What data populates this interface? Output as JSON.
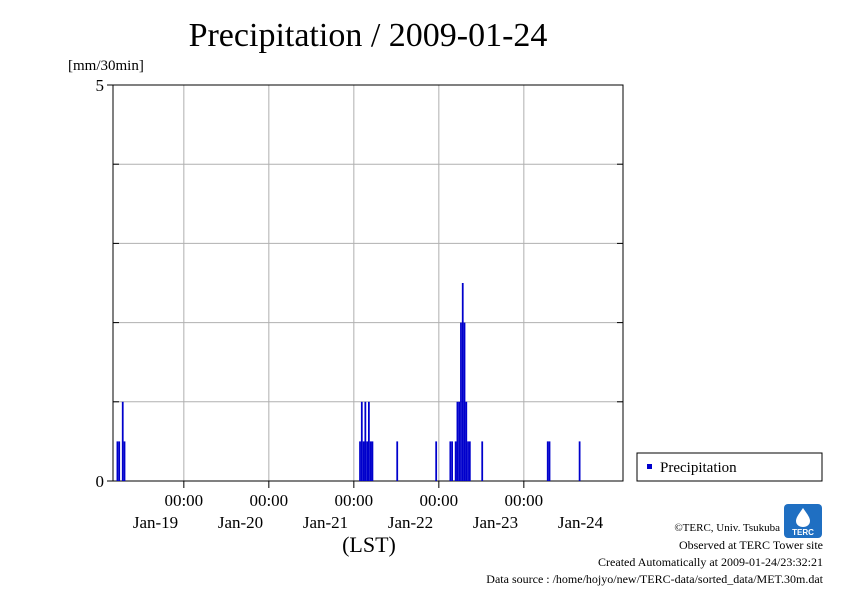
{
  "chart_data": {
    "type": "bar",
    "title": "Precipitation / 2009-01-24",
    "ylabel": "[mm/30min]",
    "xlabel": "(LST)",
    "ylim": [
      0,
      5
    ],
    "y_ticks": [
      {
        "v": 0,
        "label": "0"
      },
      {
        "v": 5,
        "label": "5"
      }
    ],
    "y_grid": [
      1,
      2,
      3,
      4
    ],
    "xlim": [
      0,
      144
    ],
    "x_ticks_time": [
      {
        "h": 20,
        "label": "00:00"
      },
      {
        "h": 44,
        "label": "00:00"
      },
      {
        "h": 68,
        "label": "00:00"
      },
      {
        "h": 92,
        "label": "00:00"
      },
      {
        "h": 116,
        "label": "00:00"
      }
    ],
    "x_ticks_date": [
      {
        "h": 12,
        "label": "Jan-19"
      },
      {
        "h": 36,
        "label": "Jan-20"
      },
      {
        "h": 60,
        "label": "Jan-21"
      },
      {
        "h": 84,
        "label": "Jan-22"
      },
      {
        "h": 108,
        "label": "Jan-23"
      },
      {
        "h": 132,
        "label": "Jan-24"
      }
    ],
    "grid": true,
    "legend_position": "right",
    "series": [
      {
        "name": "Precipitation",
        "color": "#0000cc",
        "bar_width_h": 0.5,
        "points": [
          {
            "x": 1.0,
            "y": 0.5
          },
          {
            "x": 1.5,
            "y": 0.5
          },
          {
            "x": 2.5,
            "y": 1.0
          },
          {
            "x": 3.0,
            "y": 0.5
          },
          {
            "x": 69.5,
            "y": 0.5
          },
          {
            "x": 70.0,
            "y": 1.0
          },
          {
            "x": 70.5,
            "y": 0.5
          },
          {
            "x": 71.0,
            "y": 1.0
          },
          {
            "x": 71.5,
            "y": 0.5
          },
          {
            "x": 72.0,
            "y": 1.0
          },
          {
            "x": 72.5,
            "y": 0.5
          },
          {
            "x": 73.0,
            "y": 0.5
          },
          {
            "x": 80.0,
            "y": 0.5
          },
          {
            "x": 91.0,
            "y": 0.5
          },
          {
            "x": 95.0,
            "y": 0.5
          },
          {
            "x": 95.5,
            "y": 0.5
          },
          {
            "x": 96.5,
            "y": 0.5
          },
          {
            "x": 97.0,
            "y": 1.0
          },
          {
            "x": 97.5,
            "y": 1.0
          },
          {
            "x": 98.0,
            "y": 2.0
          },
          {
            "x": 98.5,
            "y": 2.5
          },
          {
            "x": 99.0,
            "y": 2.0
          },
          {
            "x": 99.5,
            "y": 1.0
          },
          {
            "x": 100.0,
            "y": 0.5
          },
          {
            "x": 100.5,
            "y": 0.5
          },
          {
            "x": 104.0,
            "y": 0.5
          },
          {
            "x": 122.5,
            "y": 0.5
          },
          {
            "x": 123.0,
            "y": 0.5
          },
          {
            "x": 131.5,
            "y": 0.5
          }
        ]
      }
    ]
  },
  "credits": {
    "org": "©TERC, Univ. Tsukuba",
    "observed": "Observed at TERC Tower site",
    "created": "Created Automatically at 2009-01-24/23:32:21",
    "source": "Data source : /home/hojyo/new/TERC-data/sorted_data/MET.30m.dat",
    "logo_text": "TERC"
  }
}
